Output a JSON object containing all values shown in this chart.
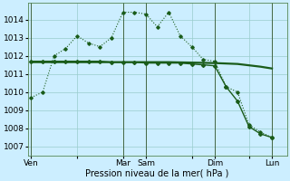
{
  "xlabel": "Pression niveau de la mer( hPa )",
  "bg_color": "#cceeff",
  "grid_color": "#99cccc",
  "line_color": "#1a5c1a",
  "ylim": [
    1006.5,
    1014.9
  ],
  "xlim": [
    -0.3,
    22.3
  ],
  "day_labels": [
    "Ven",
    "",
    "Mar",
    "Sam",
    "",
    "Dim",
    "",
    "Lun"
  ],
  "day_positions": [
    0,
    4,
    8,
    10,
    14,
    16,
    19,
    21
  ],
  "vline_positions": [
    0,
    8,
    10,
    16,
    21
  ],
  "series1_x": [
    0,
    1,
    2,
    3,
    4,
    5,
    6,
    7,
    8,
    9,
    10,
    11,
    12,
    13,
    14,
    15,
    16,
    17,
    18,
    19,
    20,
    21
  ],
  "series1_y": [
    1009.7,
    1010.0,
    1012.0,
    1012.4,
    1013.1,
    1012.7,
    1012.5,
    1013.0,
    1014.4,
    1014.4,
    1014.3,
    1013.6,
    1014.4,
    1013.1,
    1012.5,
    1011.8,
    1011.7,
    1010.3,
    1010.0,
    1008.2,
    1007.8,
    1007.5
  ],
  "series2_x": [
    0,
    1,
    2,
    3,
    4,
    5,
    6,
    7,
    8,
    9,
    10,
    11,
    12,
    13,
    14,
    15,
    16,
    17,
    18,
    19,
    20,
    21
  ],
  "series2_y": [
    1011.7,
    1011.7,
    1011.7,
    1011.7,
    1011.7,
    1011.7,
    1011.7,
    1011.65,
    1011.65,
    1011.65,
    1011.6,
    1011.6,
    1011.6,
    1011.6,
    1011.55,
    1011.5,
    1011.45,
    1010.3,
    1009.5,
    1008.1,
    1007.7,
    1007.5
  ],
  "series3_x": [
    0,
    4,
    8,
    12,
    16,
    18,
    20,
    21
  ],
  "series3_y": [
    1011.65,
    1011.65,
    1011.65,
    1011.65,
    1011.6,
    1011.55,
    1011.4,
    1011.3
  ],
  "yticks": [
    1007,
    1008,
    1009,
    1010,
    1011,
    1012,
    1013,
    1014
  ],
  "xlabel_fontsize": 7,
  "tick_fontsize": 6.5
}
